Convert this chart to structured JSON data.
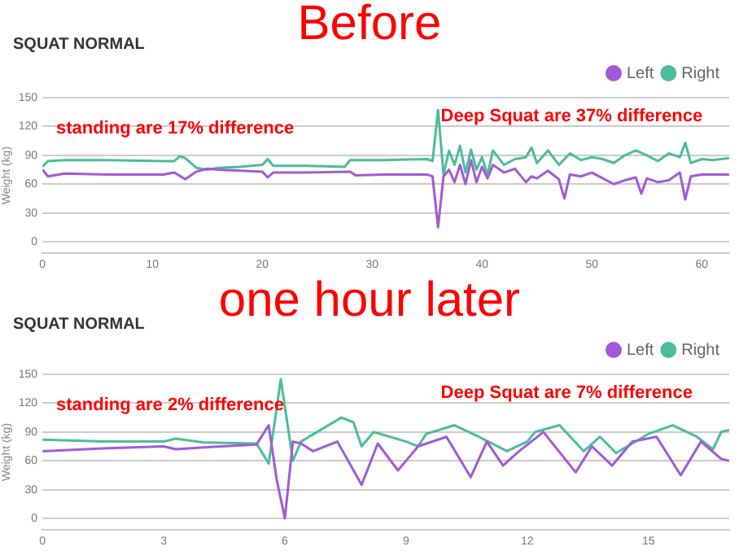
{
  "chart_data": [
    {
      "type": "line",
      "title": "Before",
      "subtitle": "SQUAT NORMAL",
      "ylabel": "Weight (kg)",
      "xlim": [
        0,
        62.5
      ],
      "xticks": [
        0,
        10,
        20,
        30,
        40,
        50,
        60
      ],
      "ylim": [
        -12,
        150
      ],
      "yticks": [
        0,
        30,
        60,
        90,
        120,
        150
      ],
      "grid": "y",
      "legend": "top right",
      "marker": "none",
      "annotations": [
        "standing are 17% difference",
        "Deep Squat are 37% difference"
      ],
      "series": [
        {
          "name": "Left",
          "color": "#a05ad8",
          "x": [
            0,
            0.5,
            2,
            6,
            11,
            12,
            13,
            14,
            15,
            16,
            18,
            20,
            20.5,
            21,
            24,
            28,
            28.5,
            31,
            35,
            35.5,
            36,
            36.5,
            37,
            37.5,
            38,
            38.5,
            39,
            39.5,
            40,
            40.5,
            41,
            42,
            43,
            44,
            44.5,
            45,
            46,
            47,
            47.5,
            48,
            49,
            50,
            51,
            52,
            53,
            54,
            54.5,
            55,
            56,
            57,
            58,
            58.5,
            59,
            60,
            61,
            62.5
          ],
          "values": [
            75,
            68,
            71,
            70,
            70,
            72,
            65,
            73,
            76,
            75,
            74,
            73,
            67,
            72,
            72,
            73,
            69,
            70,
            70,
            68,
            15,
            68,
            75,
            62,
            80,
            60,
            85,
            62,
            78,
            66,
            80,
            72,
            76,
            62,
            68,
            66,
            74,
            65,
            45,
            70,
            68,
            72,
            66,
            60,
            64,
            67,
            50,
            66,
            62,
            64,
            72,
            44,
            68,
            70,
            70,
            70
          ]
        },
        {
          "name": "Right",
          "color": "#4cbc9a",
          "x": [
            0,
            0.5,
            2,
            6,
            11,
            12,
            12.5,
            13,
            14,
            15,
            16,
            18,
            20,
            20.5,
            21,
            24,
            27.5,
            28,
            31,
            35,
            35.5,
            36,
            36.5,
            37,
            37.5,
            38,
            38.5,
            39,
            39.5,
            40,
            40.5,
            41,
            42,
            43,
            44,
            44.5,
            45,
            46,
            47,
            48,
            49,
            50,
            51,
            52,
            53,
            54,
            55,
            56,
            57,
            58,
            58.5,
            59,
            60,
            61,
            62.5
          ],
          "values": [
            78,
            84,
            85,
            85,
            84,
            84,
            89,
            87,
            77,
            75,
            77,
            78,
            80,
            86,
            79,
            79,
            78,
            85,
            85,
            86,
            84,
            137,
            70,
            95,
            80,
            100,
            72,
            96,
            75,
            88,
            70,
            95,
            80,
            86,
            88,
            98,
            82,
            95,
            80,
            92,
            85,
            88,
            86,
            82,
            90,
            95,
            90,
            84,
            92,
            88,
            103,
            82,
            86,
            85,
            87
          ]
        }
      ]
    },
    {
      "type": "line",
      "title": "one hour later",
      "subtitle": "SQUAT NORMAL",
      "ylabel": "Weight (kg)",
      "xlim": [
        0,
        17
      ],
      "xticks": [
        0,
        3,
        6,
        9,
        12,
        15
      ],
      "ylim": [
        -12,
        150
      ],
      "yticks": [
        0,
        30,
        60,
        90,
        120,
        150
      ],
      "grid": "y",
      "legend": "top right",
      "marker": "none",
      "annotations": [
        "standing are 2% difference",
        "Deep Squat are 7% difference"
      ],
      "series": [
        {
          "name": "Left",
          "color": "#a05ad8",
          "x": [
            0,
            1.5,
            3,
            3.3,
            4,
            5.3,
            5.6,
            5.8,
            6,
            6.2,
            6.4,
            6.7,
            7.3,
            7.9,
            8.3,
            8.8,
            9.3,
            10,
            10.6,
            11,
            11.4,
            11.8,
            12.4,
            13.2,
            13.6,
            14.1,
            14.6,
            15.2,
            15.8,
            16.3,
            16.8,
            17
          ],
          "values": [
            70,
            73,
            75,
            72,
            74,
            77,
            97,
            40,
            0,
            80,
            78,
            70,
            80,
            35,
            78,
            50,
            75,
            85,
            43,
            80,
            55,
            70,
            90,
            48,
            75,
            55,
            80,
            85,
            45,
            80,
            62,
            60
          ]
        },
        {
          "name": "Right",
          "color": "#4cbc9a",
          "x": [
            0,
            1.5,
            3,
            3.3,
            4,
            5.3,
            5.6,
            5.9,
            6.2,
            6.4,
            7,
            7.4,
            7.7,
            7.9,
            8.2,
            9,
            9.3,
            9.5,
            10.2,
            10.8,
            11.5,
            12,
            12.2,
            12.8,
            13.4,
            13.8,
            14.2,
            15,
            15.6,
            16.2,
            16.6,
            16.8,
            17
          ],
          "values": [
            82,
            80,
            80,
            83,
            79,
            78,
            57,
            145,
            60,
            80,
            95,
            105,
            100,
            75,
            90,
            80,
            75,
            88,
            97,
            85,
            70,
            80,
            90,
            97,
            70,
            85,
            68,
            88,
            97,
            85,
            72,
            90,
            92
          ]
        }
      ]
    }
  ]
}
